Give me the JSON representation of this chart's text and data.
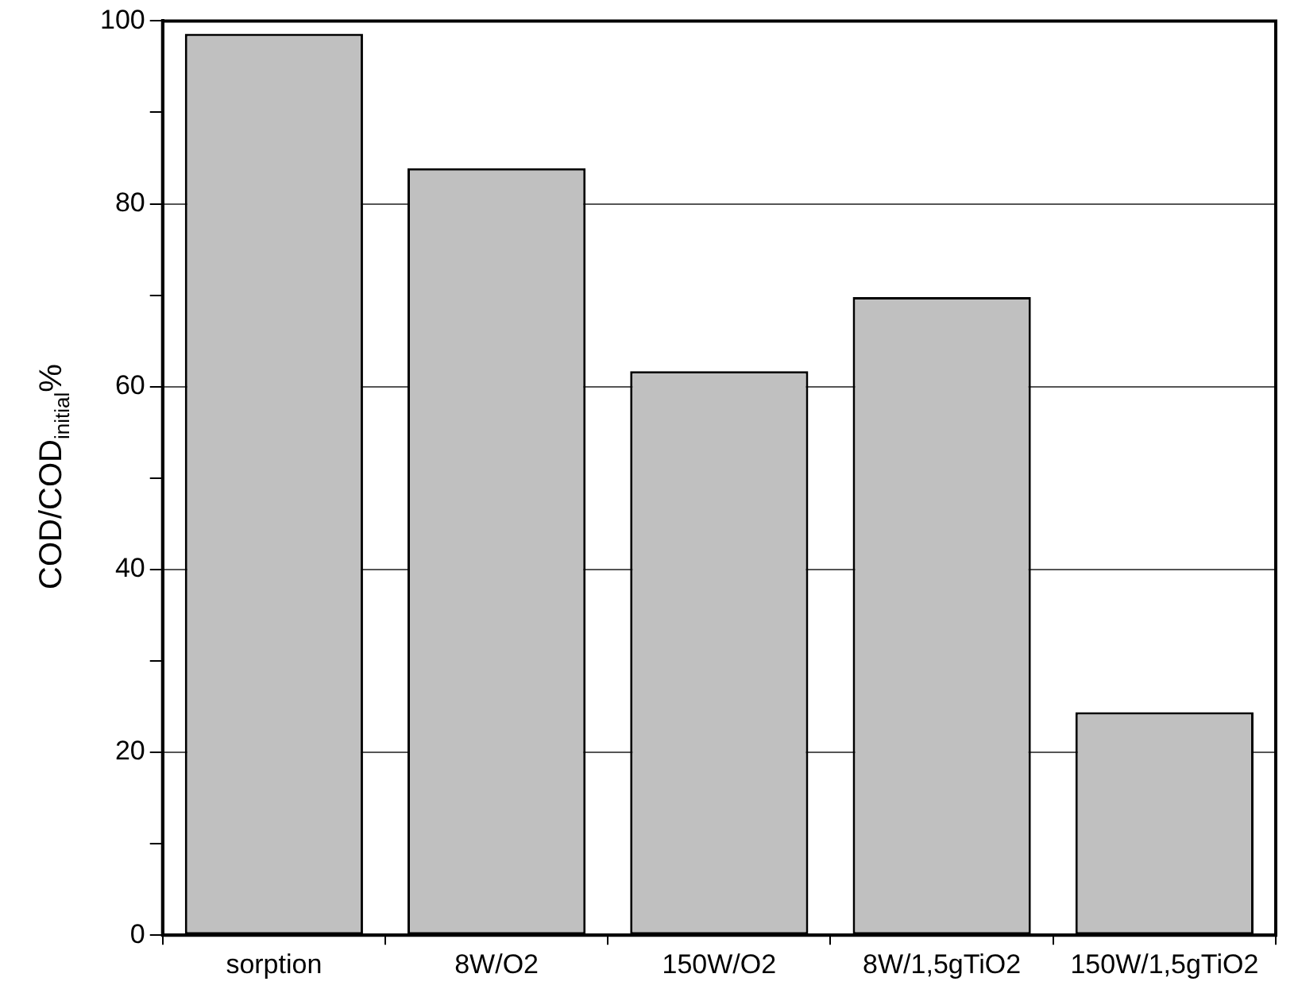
{
  "chart_data": {
    "type": "bar",
    "ylabel": "COD/COD$_{initial}$%",
    "categories": [
      "sorption",
      "8W/O2",
      "150W/O2",
      "8W/1,5gTiO2",
      "150W/1,5gTiO2"
    ],
    "values": [
      98.6,
      83.9,
      61.7,
      69.8,
      24.4
    ],
    "color": "#c0c0c0",
    "ylim": [
      0,
      100
    ],
    "yticks": [
      0,
      {
        "value": 10,
        "label": null
      },
      20,
      {
        "value": 30,
        "label": null
      },
      40,
      {
        "value": 50,
        "label": null
      },
      60,
      {
        "value": 70,
        "label": null
      },
      80,
      {
        "value": 90,
        "label": null
      },
      100
    ],
    "grid": "y",
    "legend": false
  }
}
